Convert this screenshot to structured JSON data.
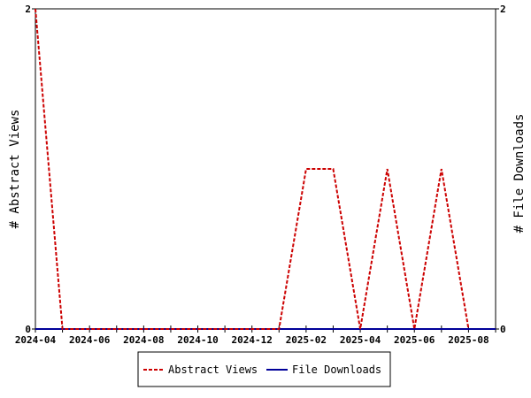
{
  "chart_data": {
    "type": "line",
    "x_tick_labels": [
      "2024-04",
      "2024-06",
      "2024-08",
      "2024-10",
      "2024-12",
      "2025-02",
      "2025-04",
      "2025-06",
      "2025-08"
    ],
    "x_range": [
      "2024-04",
      "2025-09"
    ],
    "ylabel_left": "# Abstract Views",
    "ylabel_right": "# File Downloads",
    "y_left_ticks": [
      "0",
      "2"
    ],
    "y_right_ticks": [
      "0",
      "2"
    ],
    "ylim_left": [
      0,
      2
    ],
    "ylim_right": [
      0,
      2
    ],
    "legend_position": "bottom-center",
    "series": [
      {
        "name": "Abstract Views",
        "axis": "left",
        "color": "#cc0000",
        "dash": "dashed",
        "points": [
          {
            "x": "2024-04",
            "y": 2
          },
          {
            "x": "2024-05",
            "y": 0
          },
          {
            "x": "2024-06",
            "y": 0
          },
          {
            "x": "2024-07",
            "y": 0
          },
          {
            "x": "2024-08",
            "y": 0
          },
          {
            "x": "2024-09",
            "y": 0
          },
          {
            "x": "2024-10",
            "y": 0
          },
          {
            "x": "2024-11",
            "y": 0
          },
          {
            "x": "2024-12",
            "y": 0
          },
          {
            "x": "2025-01",
            "y": 0
          },
          {
            "x": "2025-02",
            "y": 1
          },
          {
            "x": "2025-03",
            "y": 1
          },
          {
            "x": "2025-04",
            "y": 0
          },
          {
            "x": "2025-05",
            "y": 1
          },
          {
            "x": "2025-06",
            "y": 0
          },
          {
            "x": "2025-07",
            "y": 1
          },
          {
            "x": "2025-08",
            "y": 0
          }
        ]
      },
      {
        "name": "File Downloads",
        "axis": "right",
        "color": "#000099",
        "dash": "solid",
        "points": [
          {
            "x": "2024-04",
            "y": 0
          },
          {
            "x": "2024-05",
            "y": 0
          },
          {
            "x": "2024-06",
            "y": 0
          },
          {
            "x": "2024-07",
            "y": 0
          },
          {
            "x": "2024-08",
            "y": 0
          },
          {
            "x": "2024-09",
            "y": 0
          },
          {
            "x": "2024-10",
            "y": 0
          },
          {
            "x": "2024-11",
            "y": 0
          },
          {
            "x": "2024-12",
            "y": 0
          },
          {
            "x": "2025-01",
            "y": 0
          },
          {
            "x": "2025-02",
            "y": 0
          },
          {
            "x": "2025-03",
            "y": 0
          },
          {
            "x": "2025-04",
            "y": 0
          },
          {
            "x": "2025-05",
            "y": 0
          },
          {
            "x": "2025-06",
            "y": 0
          },
          {
            "x": "2025-07",
            "y": 0
          },
          {
            "x": "2025-08",
            "y": 0
          },
          {
            "x": "2025-09",
            "y": 0
          }
        ]
      }
    ]
  }
}
